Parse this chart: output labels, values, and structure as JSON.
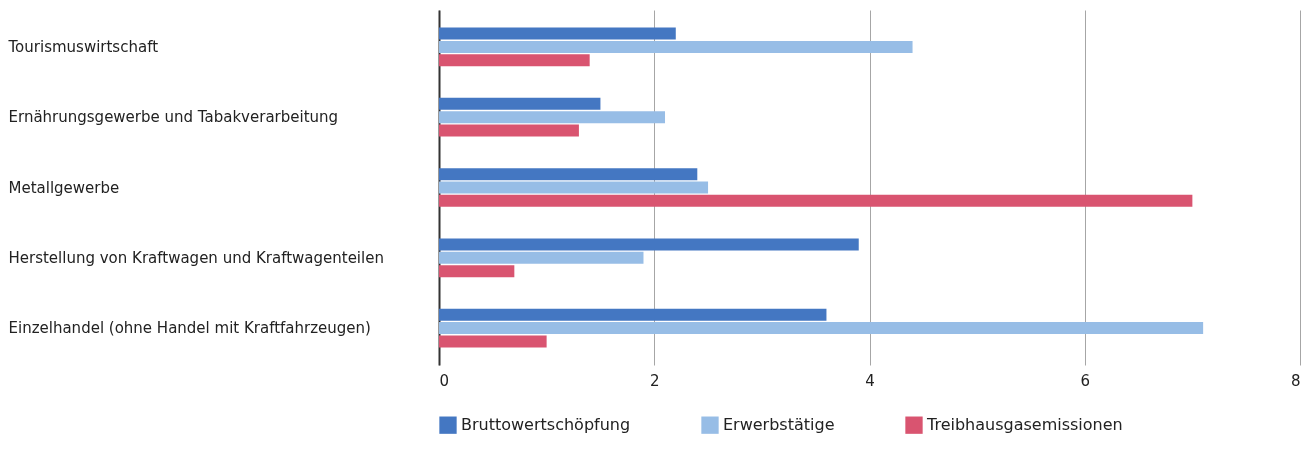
{
  "chart_data": {
    "type": "bar",
    "orientation": "horizontal",
    "categories": [
      "Tourismuswirtschaft",
      "Ernährungsgewerbe und Tabakverarbeitung",
      "Metallgewerbe",
      "Herstellung von Kraftwagen und Kraftwagenteilen",
      "Einzelhandel (ohne Handel mit Kraftfahrzeugen)"
    ],
    "series": [
      {
        "name": "Bruttowertschöpfung",
        "color": "#4477c2",
        "values": [
          2.2,
          1.5,
          2.4,
          3.9,
          3.6
        ]
      },
      {
        "name": "Erwerbstätige",
        "color": "#97bde6",
        "values": [
          4.4,
          2.1,
          2.5,
          1.9,
          7.1
        ]
      },
      {
        "name": "Treibhausgasemissionen",
        "color": "#d95470",
        "values": [
          1.4,
          1.3,
          7.0,
          0.7,
          1.0
        ]
      }
    ],
    "xlim": [
      0,
      8
    ],
    "xticks": [
      0,
      2,
      4,
      6,
      8
    ],
    "grid": "x",
    "legend": "bottom"
  }
}
